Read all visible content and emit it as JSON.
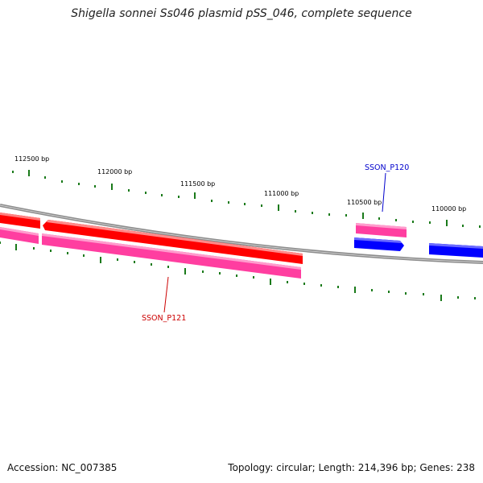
{
  "title": "Shigella sonnei Ss046 plasmid pSS_046, complete sequence",
  "footer": {
    "accession": "Accession: NC_007385",
    "summary": "Topology: circular; Length: 214,396 bp; Genes: 238"
  },
  "ruler_labels": [
    "112500 bp",
    "112000 bp",
    "111500 bp",
    "111000 bp",
    "110500 bp",
    "110000 bp"
  ],
  "gene_labels": {
    "p120": "SSON_P120",
    "p121": "SSON_P121"
  },
  "colors": {
    "backbone": "#8c8c8c",
    "tick": "#1a7a1a",
    "red_gene": "#ff0000",
    "pink_gene": "#ff3ea0",
    "blue_gene": "#0000ff",
    "label_red": "#cc0000",
    "label_blue": "#0000cc"
  }
}
